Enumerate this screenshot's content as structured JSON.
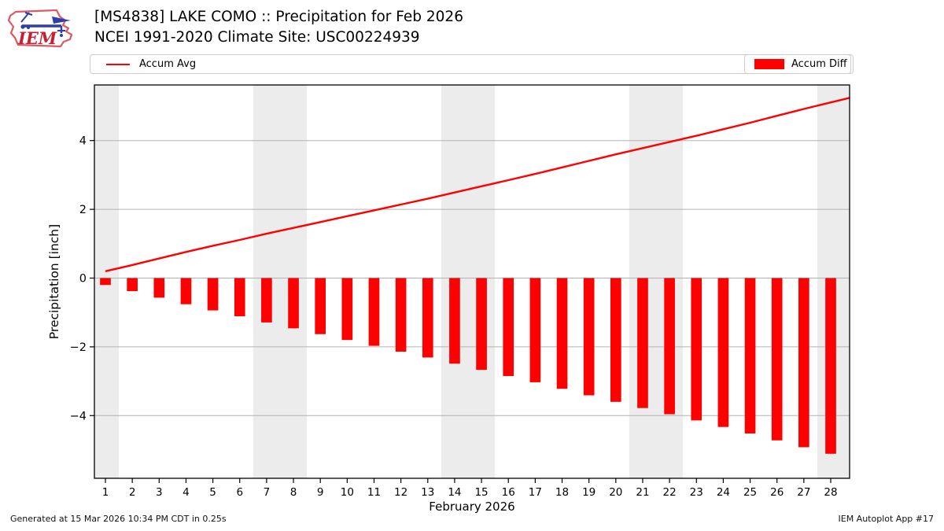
{
  "header": {
    "logo_text": "IEM",
    "title_line1": "[MS4838] LAKE COMO :: Precipitation for Feb 2026",
    "title_line2": "NCEI 1991-2020 Climate Site: USC00224939"
  },
  "legend": {
    "avg_label": "Accum Avg",
    "diff_label": "Accum Diff",
    "accent_color": "#ff0000"
  },
  "chart_data": {
    "type": "bar",
    "title": "[MS4838] LAKE COMO :: Precipitation for Feb 2026",
    "subtitle": "NCEI 1991-2020 Climate Site: USC00224939",
    "xlabel": "February 2026",
    "ylabel": "Precipitation [inch]",
    "x": [
      1,
      2,
      3,
      4,
      5,
      6,
      7,
      8,
      9,
      10,
      11,
      12,
      13,
      14,
      15,
      16,
      17,
      18,
      19,
      20,
      21,
      22,
      23,
      24,
      25,
      26,
      27,
      28
    ],
    "series": [
      {
        "name": "Accum Avg",
        "type": "line",
        "color": "#ff0000",
        "values": [
          0.2,
          0.38,
          0.57,
          0.76,
          0.94,
          1.11,
          1.29,
          1.46,
          1.63,
          1.8,
          1.97,
          2.14,
          2.31,
          2.49,
          2.67,
          2.85,
          3.03,
          3.22,
          3.41,
          3.6,
          3.78,
          3.96,
          4.14,
          4.33,
          4.52,
          4.72,
          4.92,
          5.11
        ]
      },
      {
        "name": "Accum Diff",
        "type": "bar",
        "color": "#ff0000",
        "values": [
          -0.2,
          -0.38,
          -0.57,
          -0.76,
          -0.94,
          -1.11,
          -1.29,
          -1.46,
          -1.63,
          -1.8,
          -1.97,
          -2.14,
          -2.31,
          -2.49,
          -2.67,
          -2.85,
          -3.03,
          -3.22,
          -3.41,
          -3.6,
          -3.78,
          -3.96,
          -4.14,
          -4.33,
          -4.52,
          -4.72,
          -4.92,
          -5.11
        ]
      }
    ],
    "yticks": [
      {
        "v": 4,
        "label": "4"
      },
      {
        "v": 2,
        "label": "2"
      },
      {
        "v": 0,
        "label": "0"
      },
      {
        "v": -2,
        "label": "−2"
      },
      {
        "v": -4,
        "label": "−4"
      }
    ],
    "ylim": [
      -5.82,
      5.62
    ],
    "grid": "horizontal",
    "grid_color": "#b2b2b2",
    "weekend_bands": [
      [
        -9,
        1.5
      ],
      [
        6.5,
        8.5
      ],
      [
        13.5,
        15.5
      ],
      [
        20.5,
        22.5
      ],
      [
        27.5,
        99
      ]
    ],
    "band_color": "#ececec",
    "legend_position": "top"
  },
  "footer": {
    "generated": "Generated at 15 Mar 2026 10:34 PM CDT in 0.25s",
    "app": "IEM Autoplot App #17"
  }
}
